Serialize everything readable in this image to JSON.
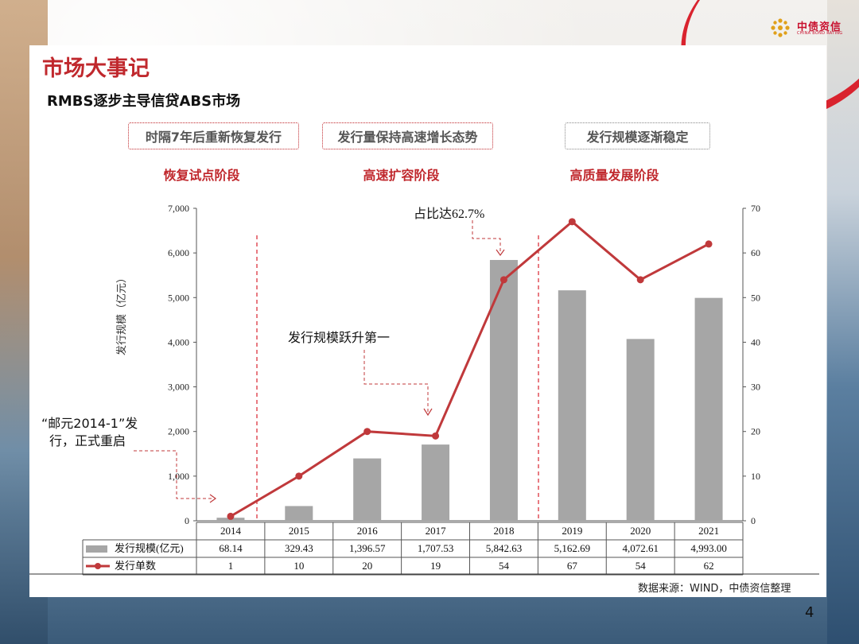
{
  "brand": {
    "name": "中债资信",
    "sub": "CHINA BOND RATING",
    "color": "#c8102e"
  },
  "page_title": "市场大事记",
  "subtitle": "RMBS逐步主导信贷ABS市场",
  "phases": [
    {
      "box": "时隔7年后重新恢复发行",
      "name": "恢复试点阶段"
    },
    {
      "box": "发行量保持高速增长态势",
      "name": "高速扩容阶段"
    },
    {
      "box": "发行规模逐渐稳定",
      "name": "高质量发展阶段"
    }
  ],
  "annotations": {
    "restart_line1": "“邮元2014-1”发",
    "restart_line2": "行，正式重启",
    "first_place": "发行规模跃升第一",
    "share_prefix": "占比达",
    "share_value": "62.7%"
  },
  "chart_data": {
    "type": "bar+line",
    "categories": [
      "2014",
      "2015",
      "2016",
      "2017",
      "2018",
      "2019",
      "2020",
      "2021"
    ],
    "series": [
      {
        "name": "发行规模(亿元)",
        "type": "bar",
        "axis": "left",
        "values": [
          68.14,
          329.43,
          1396.57,
          1707.53,
          5842.63,
          5162.69,
          4072.61,
          4993.0
        ],
        "labels": [
          "68.14",
          "329.43",
          "1,396.57",
          "1,707.53",
          "5,842.63",
          "5,162.69",
          "4,072.61",
          "4,993.00"
        ],
        "color": "#a6a6a6"
      },
      {
        "name": "发行单数",
        "type": "line",
        "axis": "right",
        "values": [
          1,
          10,
          20,
          19,
          54,
          67,
          54,
          62
        ],
        "labels": [
          "1",
          "10",
          "20",
          "19",
          "54",
          "67",
          "54",
          "62"
        ],
        "color": "#c0393b"
      }
    ],
    "ylabel": "发行规模（亿元）",
    "ylim": [
      0,
      7000
    ],
    "yticks": [
      "0",
      "1,000",
      "2,000",
      "3,000",
      "4,000",
      "5,000",
      "6,000",
      "7,000"
    ],
    "y2lim": [
      0,
      70
    ],
    "y2ticks": [
      "0",
      "10",
      "20",
      "30",
      "40",
      "50",
      "60",
      "70"
    ],
    "legend": "data-table"
  },
  "source": "数据来源：WIND，中债资信整理",
  "page_number": "4",
  "colors": {
    "accent": "#c0282d",
    "divider": "#d9232e"
  }
}
